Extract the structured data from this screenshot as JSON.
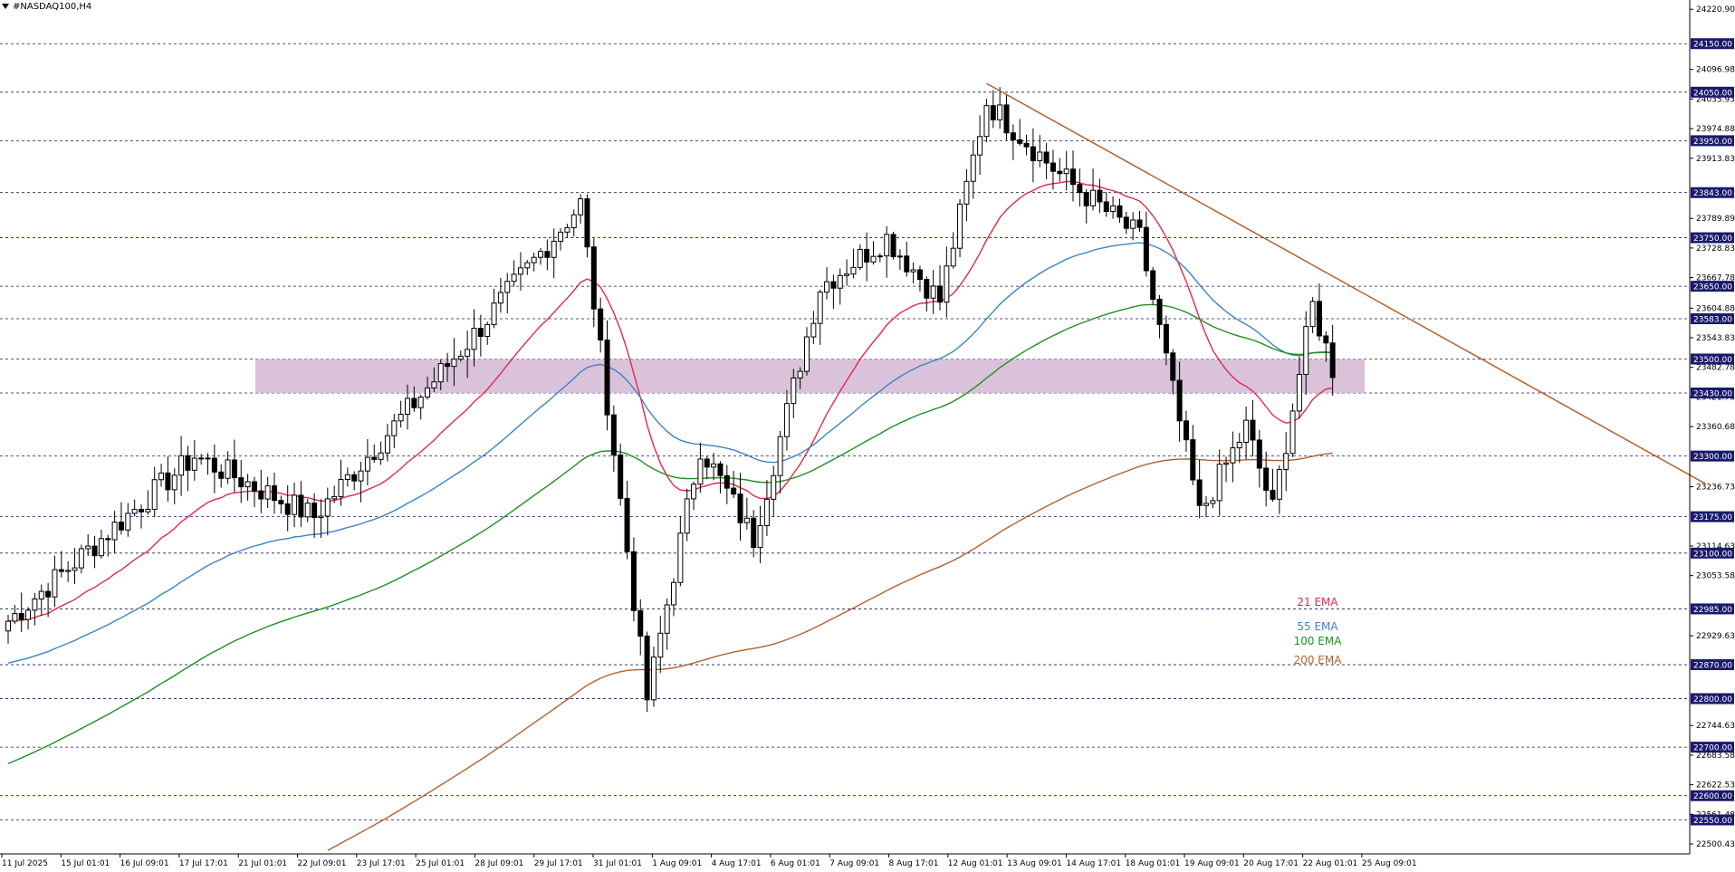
{
  "window_title": "#NASDAQ100,H4",
  "legend": [
    {
      "label": "21 EMA",
      "color": "#e0294a"
    },
    {
      "label": "55 EMA",
      "color": "#3b84c4"
    },
    {
      "label": "100 EMA",
      "color": "#1e8f1e"
    },
    {
      "label": "200 EMA",
      "color": "#b5602e"
    }
  ],
  "chart_data": {
    "type": "candlestick",
    "symbol": "#NASDAQ100",
    "timeframe": "H4",
    "ylim": [
      22480,
      24240
    ],
    "price_scale_ticks": [
      "24220.90",
      "24096.98",
      "24035.93",
      "23974.88",
      "23913.83",
      "23789.89",
      "23728.83",
      "23667.78",
      "23604.88",
      "23543.83",
      "23482.78",
      "23421.73",
      "23360.68",
      "23236.73",
      "23114.63",
      "23053.58",
      "22929.63",
      "22744.63",
      "22683.58",
      "22622.53",
      "22561.48",
      "22500.43"
    ],
    "level_lines": [
      24150.0,
      24050.0,
      23950.0,
      23843.0,
      23750.0,
      23650.0,
      23583.0,
      23500.0,
      23430.0,
      23300.0,
      23175.0,
      23100.0,
      22985.0,
      22870.0,
      22800.0,
      22700.0,
      22600.0,
      22550.0
    ],
    "level_labels": [
      "24150.00",
      "24050.00",
      "23950.00",
      "23843.00",
      "23750.00",
      "23650.00",
      "23583.00",
      "23500.00",
      "23430.00",
      "23300.00",
      "23175.00",
      "23100.00",
      "22985.00",
      "22870.00",
      "22800.00",
      "22700.00",
      "22600.00",
      "22550.00"
    ],
    "time_labels": [
      "11 Jul 2025",
      "15 Jul 01:01",
      "16 Jul 09:01",
      "17 Jul 17:01",
      "21 Jul 01:01",
      "22 Jul 09:01",
      "23 Jul 17:01",
      "25 Jul 01:01",
      "28 Jul 09:01",
      "29 Jul 17:01",
      "31 Jul 01:01",
      "1 Aug 09:01",
      "4 Aug 17:01",
      "6 Aug 01:01",
      "7 Aug 09:01",
      "8 Aug 17:01",
      "12 Aug 01:01",
      "13 Aug 09:01",
      "14 Aug 17:01",
      "18 Aug 01:01",
      "19 Aug 09:01",
      "20 Aug 17:01",
      "22 Aug 01:01",
      "25 Aug 09:01"
    ],
    "zone": {
      "low": 23430,
      "high": 23500,
      "color": "#d8bfd8"
    },
    "trendline": {
      "from": {
        "bar_index": 147,
        "price": 24068
      },
      "to": {
        "bar_index": 255,
        "price": 23243
      },
      "color": "#b5602e"
    },
    "key_closes": [
      {
        "bar_index": 0,
        "price": 22960
      },
      {
        "bar_index": 28,
        "price": 23300
      },
      {
        "bar_index": 46,
        "price": 23175
      },
      {
        "bar_index": 70,
        "price": 23550
      },
      {
        "bar_index": 86,
        "price": 23820
      },
      {
        "bar_index": 96,
        "price": 22800
      },
      {
        "bar_index": 104,
        "price": 23320
      },
      {
        "bar_index": 112,
        "price": 23130
      },
      {
        "bar_index": 122,
        "price": 23650
      },
      {
        "bar_index": 132,
        "price": 23750
      },
      {
        "bar_index": 140,
        "price": 23620
      },
      {
        "bar_index": 147,
        "price": 24030
      },
      {
        "bar_index": 158,
        "price": 23880
      },
      {
        "bar_index": 170,
        "price": 23750
      },
      {
        "bar_index": 179,
        "price": 23180
      },
      {
        "bar_index": 186,
        "price": 23360
      },
      {
        "bar_index": 190,
        "price": 23190
      },
      {
        "bar_index": 196,
        "price": 23610
      },
      {
        "bar_index": 199,
        "price": 23480
      }
    ]
  }
}
